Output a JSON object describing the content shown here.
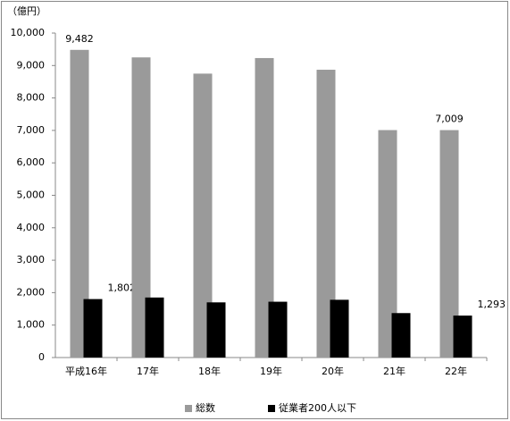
{
  "chart_data": {
    "type": "bar",
    "unit_label": "（億円）",
    "categories": [
      "平成16年",
      "17年",
      "18年",
      "19年",
      "20年",
      "21年",
      "22年"
    ],
    "series": [
      {
        "name": "総数",
        "color": "#9a9a9a",
        "values": [
          9482,
          9250,
          8750,
          9230,
          8870,
          7010,
          7009
        ],
        "value_labels": [
          "9,482",
          null,
          null,
          null,
          null,
          null,
          "7,009"
        ]
      },
      {
        "name": "従業者200人以下",
        "color": "#000000",
        "values": [
          1802,
          1850,
          1700,
          1720,
          1780,
          1370,
          1293
        ],
        "value_labels": [
          "1,802",
          null,
          null,
          null,
          null,
          null,
          "1,293"
        ]
      }
    ],
    "ylim": [
      0,
      10000
    ],
    "yticks": [
      0,
      {
        "value": 1000,
        "label": "1,000"
      },
      {
        "value": 2000,
        "label": "2,000"
      },
      {
        "value": 3000,
        "label": "3,000"
      },
      {
        "value": 4000,
        "label": "4,000"
      },
      {
        "value": 5000,
        "label": "5,000"
      },
      {
        "value": 6000,
        "label": "6,000"
      },
      {
        "value": 7000,
        "label": "7,000"
      },
      {
        "value": 8000,
        "label": "8,000"
      },
      {
        "value": 9000,
        "label": "9,000"
      },
      {
        "value": 10000,
        "label": "10,000"
      }
    ],
    "grid": false,
    "legend": "bottom"
  }
}
